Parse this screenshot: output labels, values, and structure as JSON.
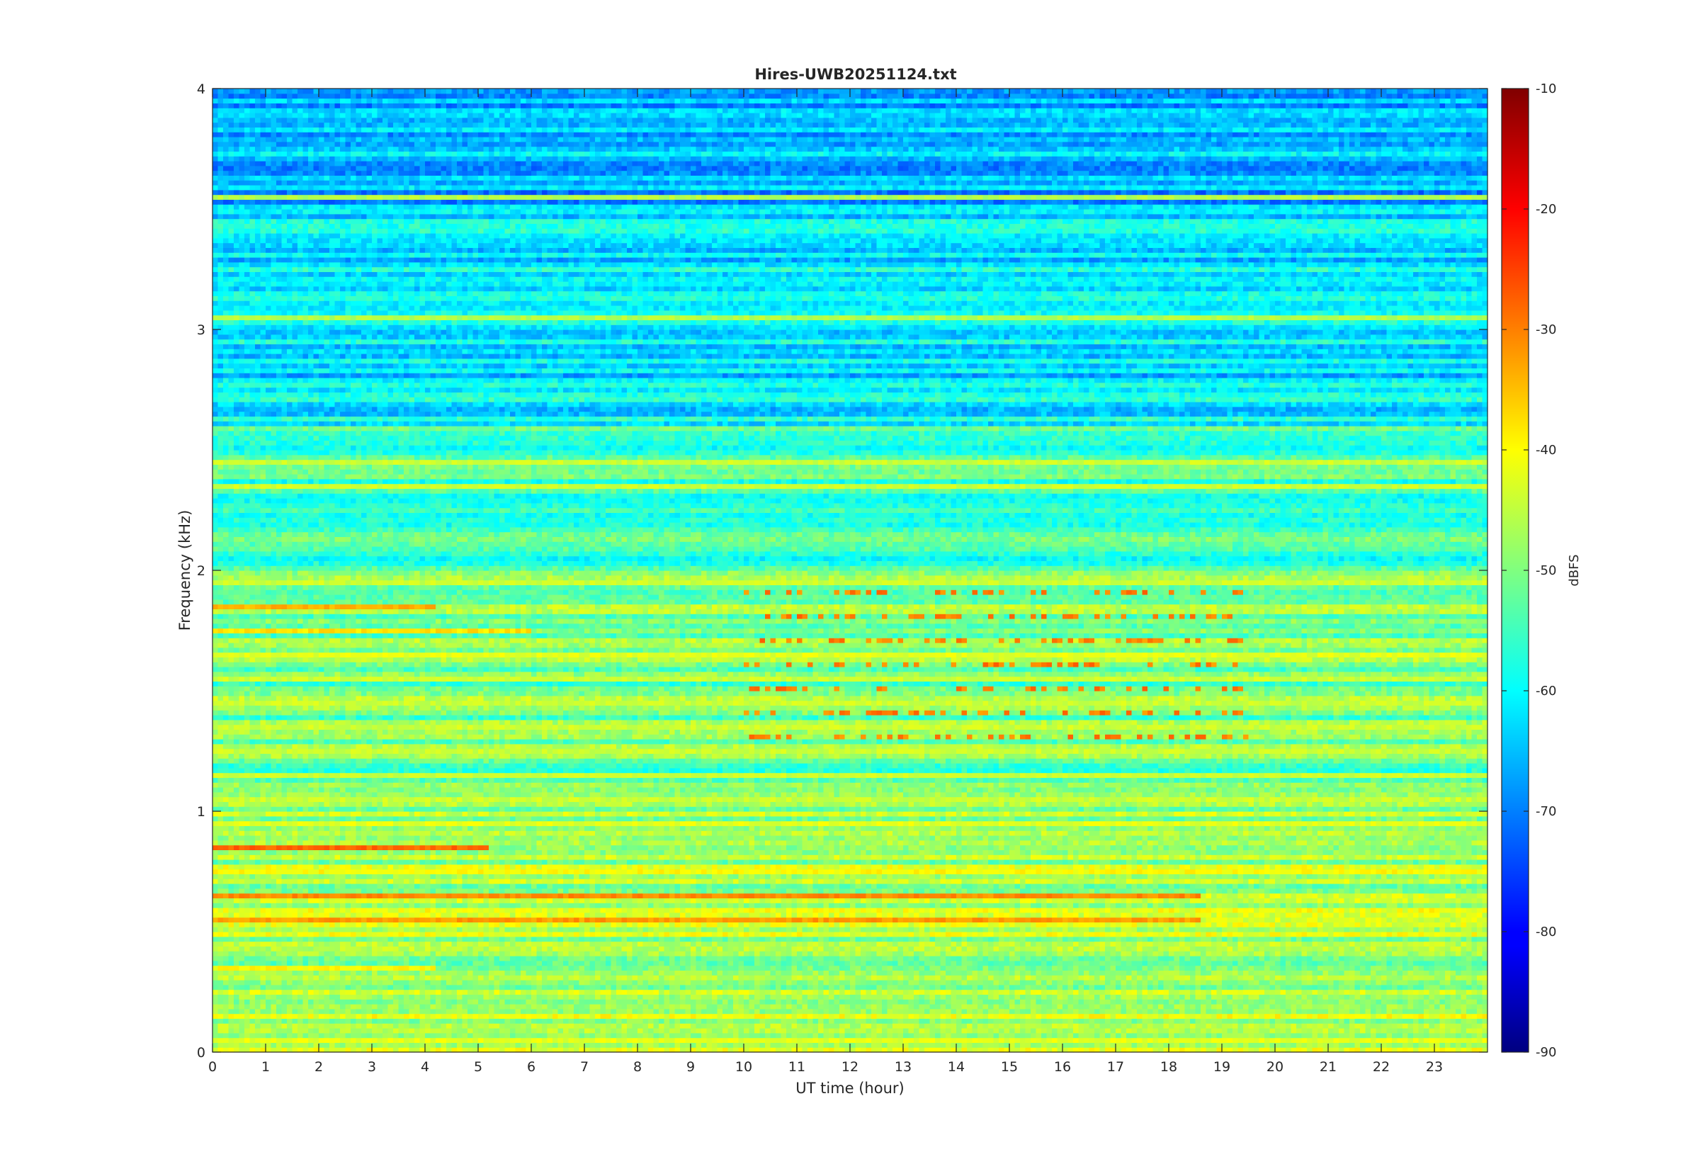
{
  "chart_data": {
    "type": "heatmap",
    "title": "Hires-UWB20251124.txt",
    "xlabel": "UT time (hour)",
    "ylabel": "Frequency (kHz)",
    "xlim": [
      0,
      24
    ],
    "ylim": [
      0,
      4
    ],
    "x_ticks": [
      0,
      1,
      2,
      3,
      4,
      5,
      6,
      7,
      8,
      9,
      10,
      11,
      12,
      13,
      14,
      15,
      16,
      17,
      18,
      19,
      20,
      21,
      22,
      23
    ],
    "y_ticks": [
      0,
      1,
      2,
      3,
      4
    ],
    "colormap": "jet",
    "colorbar": {
      "label": "dBFS",
      "range": [
        -90,
        -10
      ],
      "ticks": [
        -90,
        -80,
        -70,
        -60,
        -50,
        -40,
        -30,
        -20,
        -10
      ]
    },
    "background_level_dbfs": {
      "0-1 kHz": -47,
      "1-2 kHz": -51,
      "2-2.6 kHz": -55,
      "2.6-3.5 kHz": -62,
      "3.5-4 kHz": -66
    },
    "bands": [
      {
        "freq_khz": 0.05,
        "level_dbfs": -42
      },
      {
        "freq_khz": 0.35,
        "level_dbfs": -40,
        "hours": [
          0,
          4.2
        ]
      },
      {
        "freq_khz": 0.55,
        "level_dbfs": -32,
        "hours": [
          0,
          18.6
        ]
      },
      {
        "freq_khz": 0.65,
        "level_dbfs": -31,
        "hours": [
          0,
          18.6
        ]
      },
      {
        "freq_khz": 0.75,
        "level_dbfs": -40
      },
      {
        "freq_khz": 0.85,
        "level_dbfs": -28,
        "hours": [
          0,
          5.2
        ]
      },
      {
        "freq_khz": 0.95,
        "level_dbfs": -42
      },
      {
        "freq_khz": 1.05,
        "level_dbfs": -44
      },
      {
        "freq_khz": 1.15,
        "level_dbfs": -44
      },
      {
        "freq_khz": 1.25,
        "level_dbfs": -44
      },
      {
        "freq_khz": 1.35,
        "level_dbfs": -44
      },
      {
        "freq_khz": 1.45,
        "level_dbfs": -44
      },
      {
        "freq_khz": 1.55,
        "level_dbfs": -44
      },
      {
        "freq_khz": 1.65,
        "level_dbfs": -42
      },
      {
        "freq_khz": 1.75,
        "level_dbfs": -38,
        "hours": [
          0,
          6
        ]
      },
      {
        "freq_khz": 1.85,
        "level_dbfs": -34,
        "hours": [
          0,
          4.2
        ]
      },
      {
        "freq_khz": 1.95,
        "level_dbfs": -44
      },
      {
        "freq_khz": 2.35,
        "level_dbfs": -44
      },
      {
        "freq_khz": 2.45,
        "level_dbfs": -44
      },
      {
        "freq_khz": 3.05,
        "level_dbfs": -46
      },
      {
        "freq_khz": 3.55,
        "level_dbfs": -46
      }
    ],
    "pulsed_activity": {
      "hours": [
        10,
        19.5
      ],
      "freq_khz": [
        1.3,
        2.0
      ],
      "level_dbfs": -30
    }
  }
}
